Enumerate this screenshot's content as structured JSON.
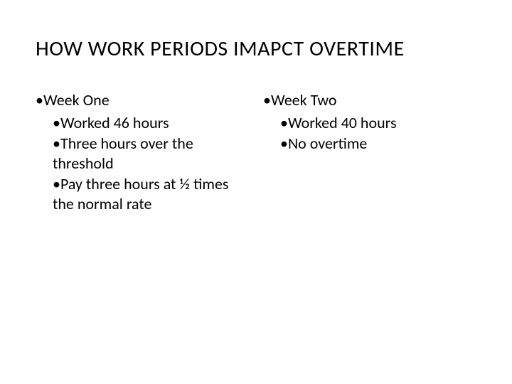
{
  "title": "HOW WORK PERIODS IMAPCT OVERTIME",
  "left": {
    "heading": "Week One",
    "items": [
      "Worked 46 hours",
      "Three hours over the threshold",
      "Pay three hours at ½ times the normal rate"
    ]
  },
  "right": {
    "heading": "Week Two",
    "items": [
      "Worked 40 hours",
      "No overtime"
    ]
  },
  "colors": {
    "background": "#ffffff",
    "text": "#000000"
  },
  "fonts": {
    "title_size_pt": 30,
    "body_size_pt": 22,
    "family": "Calibri"
  }
}
